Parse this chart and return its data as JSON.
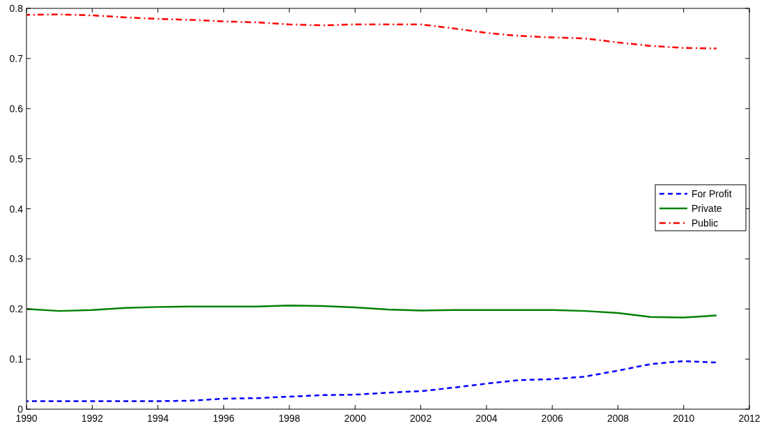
{
  "chart_data": {
    "type": "line",
    "x": [
      1990,
      1991,
      1992,
      1993,
      1994,
      1995,
      1996,
      1997,
      1998,
      1999,
      2000,
      2001,
      2002,
      2003,
      2004,
      2005,
      2006,
      2007,
      2008,
      2009,
      2010,
      2011
    ],
    "series": [
      {
        "name": "For Profit",
        "color": "#0000ff",
        "line_style": "dashed",
        "values": [
          0.016,
          0.016,
          0.016,
          0.016,
          0.016,
          0.017,
          0.021,
          0.022,
          0.025,
          0.028,
          0.029,
          0.033,
          0.036,
          0.043,
          0.051,
          0.058,
          0.06,
          0.065,
          0.077,
          0.09,
          0.096,
          0.093
        ]
      },
      {
        "name": "Private",
        "color": "#008000",
        "line_style": "solid",
        "values": [
          0.2,
          0.196,
          0.198,
          0.202,
          0.204,
          0.205,
          0.205,
          0.205,
          0.207,
          0.206,
          0.203,
          0.199,
          0.197,
          0.198,
          0.198,
          0.198,
          0.198,
          0.196,
          0.192,
          0.184,
          0.183,
          0.187
        ]
      },
      {
        "name": "Public",
        "color": "#ff0000",
        "line_style": "dashdot",
        "values": [
          0.787,
          0.788,
          0.786,
          0.782,
          0.779,
          0.777,
          0.774,
          0.772,
          0.768,
          0.766,
          0.768,
          0.768,
          0.768,
          0.76,
          0.751,
          0.745,
          0.742,
          0.74,
          0.732,
          0.725,
          0.721,
          0.72
        ]
      }
    ],
    "xlim": [
      1990,
      2012
    ],
    "xticks": [
      1990,
      1992,
      1994,
      1996,
      1998,
      2000,
      2002,
      2004,
      2006,
      2008,
      2010,
      2012
    ],
    "ylim": [
      0,
      0.8
    ],
    "yticks": [
      0,
      0.1,
      0.2,
      0.3,
      0.4,
      0.5,
      0.6,
      0.7,
      0.8
    ],
    "grid": false,
    "legend": "right",
    "marker": "none"
  }
}
